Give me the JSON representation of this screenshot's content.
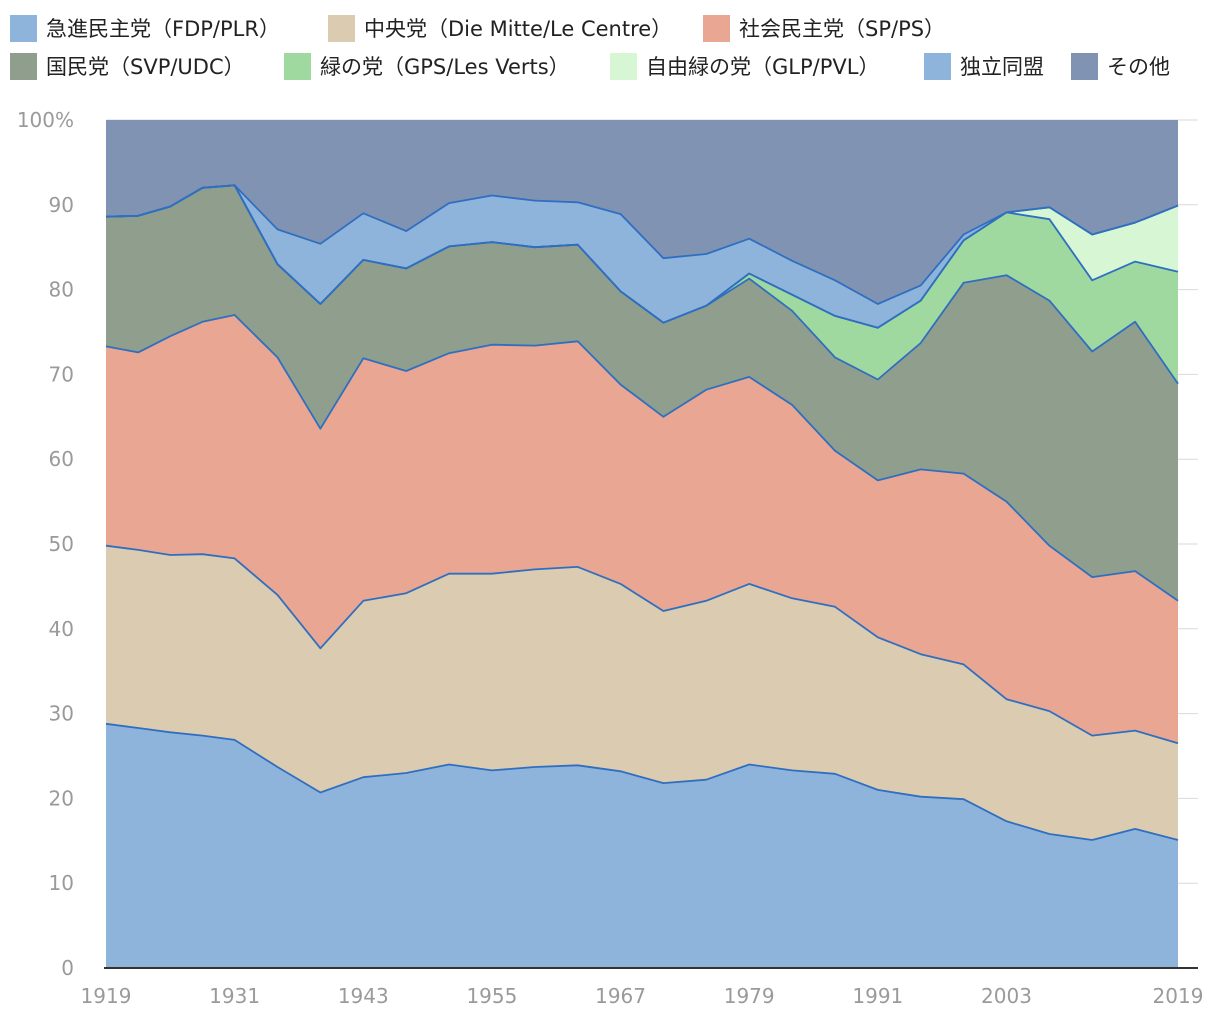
{
  "chart_data": {
    "type": "area",
    "stacked": true,
    "x": [
      1919,
      1922,
      1925,
      1928,
      1931,
      1935,
      1939,
      1943,
      1947,
      1951,
      1955,
      1959,
      1963,
      1967,
      1971,
      1975,
      1979,
      1983,
      1987,
      1991,
      1995,
      1999,
      2003,
      2007,
      2011,
      2015,
      2019
    ],
    "xticks": [
      1919,
      1931,
      1943,
      1955,
      1967,
      1979,
      1991,
      2003,
      2019
    ],
    "yticks": [
      0,
      10,
      20,
      30,
      40,
      50,
      60,
      70,
      80,
      90,
      100
    ],
    "ytick_labels": [
      "0",
      "10",
      "20",
      "30",
      "40",
      "50",
      "60",
      "70",
      "80",
      "90",
      "100%"
    ],
    "ylim": [
      0,
      100
    ],
    "grid": true,
    "legend_position": "top",
    "line_color": "#2f6fc0",
    "series": [
      {
        "name": "急進民主党（FDP/PLR）",
        "color": "#8fb4dc",
        "values": [
          28.8,
          28.3,
          27.8,
          27.4,
          26.9,
          23.7,
          20.7,
          22.5,
          23.0,
          24.0,
          23.3,
          23.7,
          23.9,
          23.2,
          21.8,
          22.2,
          24.0,
          23.3,
          22.9,
          21.0,
          20.2,
          19.9,
          17.3,
          15.8,
          15.1,
          16.4,
          15.1
        ]
      },
      {
        "name": "中央党（Die Mitte/Le Centre）",
        "color": "#dbcbb0",
        "values": [
          21.0,
          21.0,
          20.9,
          21.4,
          21.4,
          20.3,
          17.0,
          20.8,
          21.2,
          22.5,
          23.2,
          23.3,
          23.4,
          22.1,
          20.3,
          21.1,
          21.3,
          20.3,
          19.7,
          18.0,
          16.8,
          15.9,
          14.4,
          14.5,
          12.3,
          11.6,
          11.4
        ]
      },
      {
        "name": "社会民主党（SP/PS）",
        "color": "#e8a693",
        "values": [
          23.5,
          23.3,
          25.8,
          27.4,
          28.7,
          28.0,
          25.9,
          28.6,
          26.2,
          26.0,
          27.0,
          26.4,
          26.6,
          23.5,
          22.9,
          24.9,
          24.4,
          22.8,
          18.4,
          18.5,
          21.8,
          22.5,
          23.3,
          19.5,
          18.7,
          18.8,
          16.8
        ]
      },
      {
        "name": "国民党（SVP/UDC）",
        "color": "#909f8d",
        "values": [
          15.3,
          16.1,
          15.3,
          15.8,
          15.3,
          11.0,
          14.7,
          11.6,
          12.1,
          12.6,
          12.1,
          11.6,
          11.4,
          11.0,
          11.1,
          9.9,
          11.6,
          11.1,
          11.0,
          11.9,
          14.9,
          22.5,
          26.7,
          28.9,
          26.6,
          29.4,
          25.6
        ]
      },
      {
        "name": "緑の党（GPS/Les Verts）",
        "color": "#a0d9a0",
        "values": [
          0,
          0,
          0,
          0,
          0,
          0,
          0,
          0,
          0,
          0,
          0,
          0,
          0,
          0,
          0,
          0,
          0.6,
          1.9,
          4.9,
          6.1,
          5.0,
          5.0,
          7.4,
          9.6,
          8.4,
          7.1,
          13.2
        ]
      },
      {
        "name": "自由緑の党（GLP/PVL）",
        "color": "#d6f6d4",
        "values": [
          0,
          0,
          0,
          0,
          0,
          0,
          0,
          0,
          0,
          0,
          0,
          0,
          0,
          0,
          0,
          0,
          0,
          0,
          0,
          0,
          0,
          0,
          0,
          1.4,
          5.4,
          4.6,
          7.8
        ]
      },
      {
        "name": "独立同盟",
        "color": "#8fb4dc",
        "values": [
          0,
          0,
          0,
          0,
          0,
          4.1,
          7.1,
          5.5,
          4.4,
          5.1,
          5.5,
          5.5,
          5.0,
          9.1,
          7.6,
          6.1,
          4.1,
          4.0,
          4.2,
          2.8,
          1.8,
          0.7,
          0,
          0,
          0,
          0,
          0
        ]
      },
      {
        "name": "その他",
        "color": "#8093b3",
        "values": [
          11.4,
          11.3,
          10.2,
          8.0,
          7.7,
          12.9,
          14.6,
          11.0,
          13.1,
          9.8,
          8.9,
          9.5,
          9.7,
          11.1,
          16.3,
          15.8,
          14.0,
          16.6,
          18.9,
          21.7,
          19.5,
          13.5,
          10.9,
          10.3,
          13.5,
          12.1,
          10.1
        ]
      }
    ]
  }
}
